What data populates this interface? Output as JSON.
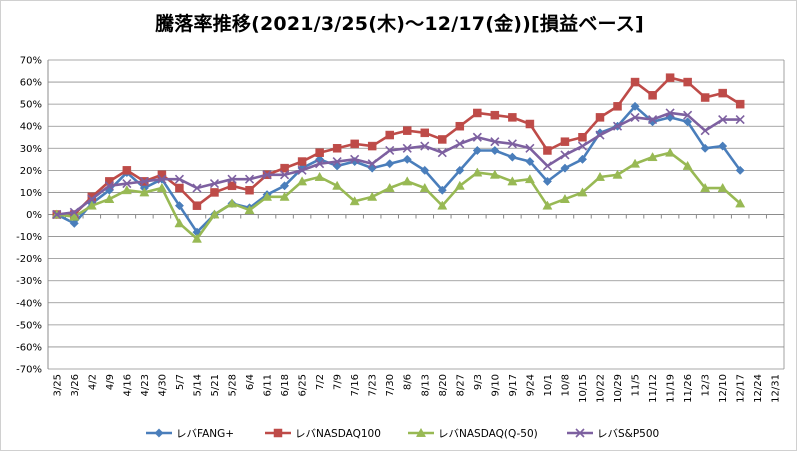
{
  "chart_data": {
    "type": "line",
    "title": "騰落率推移(2021/3/25(木)〜12/17(金))[損益ベース]",
    "xlabel": "",
    "ylabel": "",
    "ylim": [
      -70,
      70
    ],
    "yticks": [
      70,
      60,
      50,
      40,
      30,
      20,
      10,
      0,
      -10,
      -20,
      -30,
      -40,
      -50,
      -60,
      -70
    ],
    "ytick_labels": [
      "70%",
      "60%",
      "50%",
      "40%",
      "30%",
      "20%",
      "10%",
      "0%",
      "-10%",
      "-20%",
      "-30%",
      "-40%",
      "-50%",
      "-60%",
      "-70%"
    ],
    "grid": true,
    "legend": "bottom",
    "categories": [
      "3/25",
      "3/26",
      "4/2",
      "4/9",
      "4/16",
      "4/23",
      "4/30",
      "5/7",
      "5/14",
      "5/21",
      "5/28",
      "6/4",
      "6/11",
      "6/18",
      "6/25",
      "7/2",
      "7/9",
      "7/16",
      "7/23",
      "7/30",
      "8/6",
      "8/13",
      "8/20",
      "8/27",
      "9/3",
      "9/10",
      "9/17",
      "9/24",
      "10/1",
      "10/8",
      "10/15",
      "10/22",
      "10/29",
      "11/5",
      "11/12",
      "11/19",
      "11/26",
      "12/3",
      "12/10",
      "12/17",
      "12/24",
      "12/31"
    ],
    "series": [
      {
        "name": "レバFANG+",
        "color": "#4a7ebb",
        "marker": "diamond",
        "values": [
          0,
          -4,
          5,
          11,
          19,
          12,
          16,
          4,
          -8,
          0,
          5,
          3,
          9,
          13,
          21,
          25,
          22,
          24,
          21,
          23,
          25,
          20,
          11,
          20,
          29,
          29,
          26,
          24,
          15,
          21,
          25,
          37,
          40,
          49,
          42,
          44,
          42,
          30,
          31,
          20,
          null,
          null
        ]
      },
      {
        "name": "レバNASDAQ100",
        "color": "#be4b48",
        "marker": "square",
        "values": [
          0,
          0,
          8,
          15,
          20,
          15,
          18,
          12,
          4,
          10,
          13,
          11,
          18,
          21,
          24,
          28,
          30,
          32,
          31,
          36,
          38,
          37,
          34,
          40,
          46,
          45,
          44,
          41,
          29,
          33,
          35,
          44,
          49,
          60,
          54,
          62,
          60,
          53,
          55,
          50,
          null,
          null
        ]
      },
      {
        "name": "レバNASDAQ(Q-50)",
        "color": "#98b954",
        "marker": "triangle",
        "values": [
          0,
          -1,
          4,
          7,
          11,
          10,
          12,
          -4,
          -11,
          0,
          5,
          2,
          8,
          8,
          15,
          17,
          13,
          6,
          8,
          12,
          15,
          12,
          4,
          13,
          19,
          18,
          15,
          16,
          4,
          7,
          10,
          17,
          18,
          23,
          26,
          28,
          22,
          12,
          12,
          5,
          null,
          null
        ]
      },
      {
        "name": "レバS&P500",
        "color": "#7d60a0",
        "marker": "x",
        "values": [
          0,
          1,
          7,
          13,
          14,
          15,
          16,
          16,
          12,
          14,
          16,
          16,
          18,
          18,
          20,
          23,
          24,
          25,
          23,
          29,
          30,
          31,
          28,
          32,
          35,
          33,
          32,
          30,
          22,
          27,
          31,
          36,
          40,
          44,
          43,
          46,
          45,
          38,
          43,
          43,
          null,
          null
        ]
      }
    ]
  }
}
